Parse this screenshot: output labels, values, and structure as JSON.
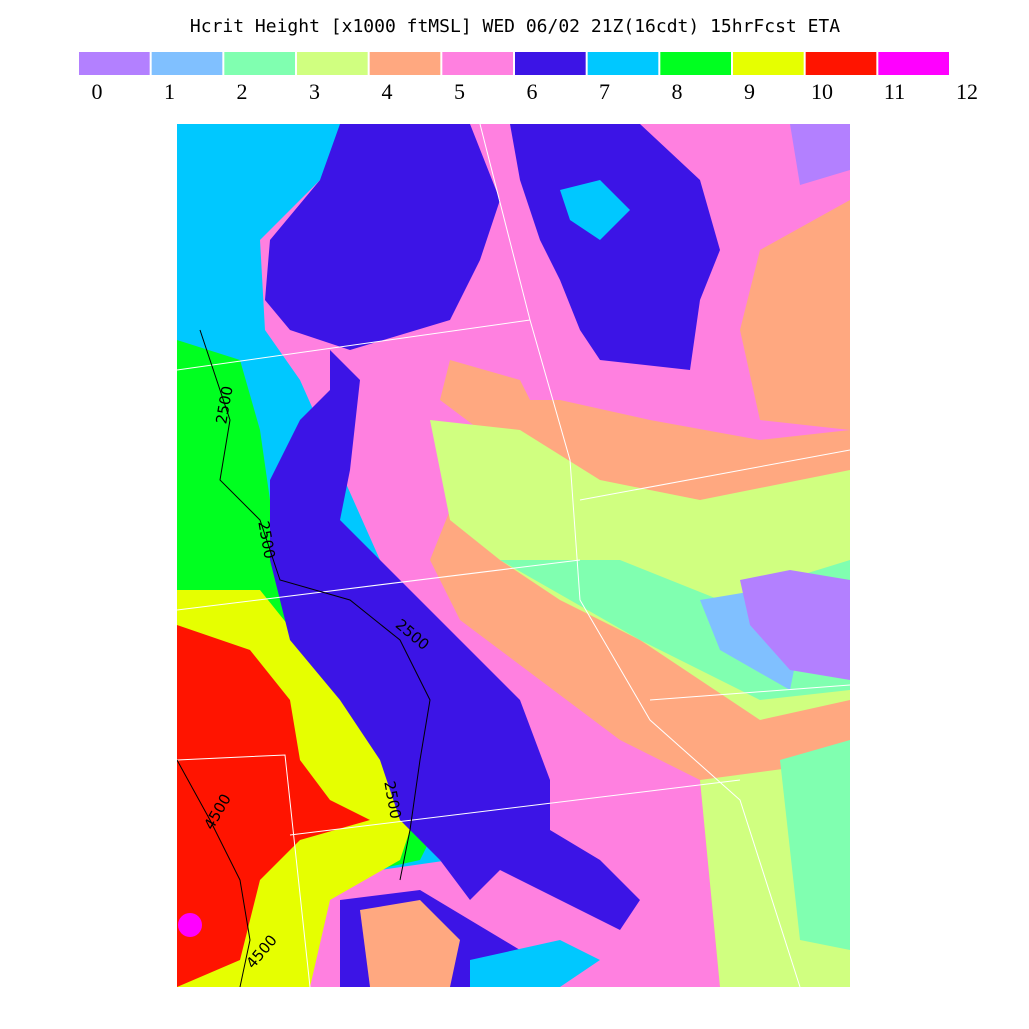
{
  "title": "Hcrit Height [x1000 ftMSL]  WED 06/02 21Z(16cdt) 15hrFcst ETA",
  "colorbar": {
    "colors": [
      "#b380ff",
      "#80c0ff",
      "#80ffb0",
      "#d0ff80",
      "#ffa880",
      "#ff80e0",
      "#3c14e6",
      "#00c8ff",
      "#00ff20",
      "#e6ff00",
      "#ff1400",
      "#ff00ff"
    ],
    "ticks": [
      0,
      1,
      2,
      3,
      4,
      5,
      6,
      7,
      8,
      9,
      10,
      11,
      12
    ]
  },
  "contour_labels": [
    "2500",
    "2500",
    "2500",
    "2500",
    "4500",
    "4500"
  ]
}
